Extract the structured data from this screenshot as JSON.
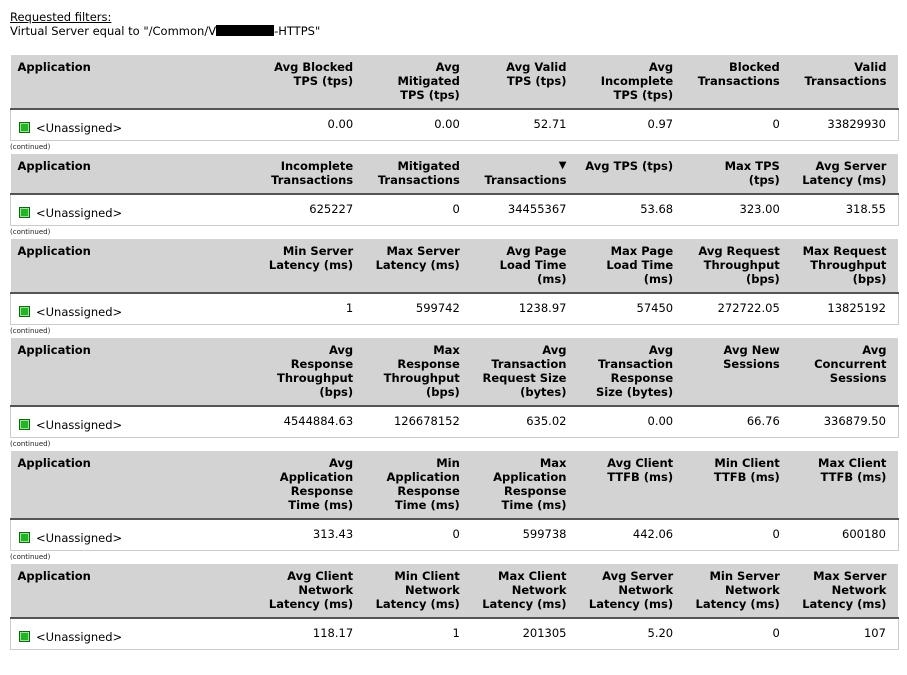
{
  "filters": {
    "title": "Requested filters:",
    "condition_prefix": "Virtual Server equal to \"/Common/V",
    "condition_suffix": "-HTTPS\""
  },
  "tables": [
    {
      "headers": [
        "Application",
        "Avg Blocked TPS (tps)",
        "Avg Mitigated TPS (tps)",
        "Avg Valid TPS (tps)",
        "Avg Incomplete TPS (tps)",
        "Blocked Transactions",
        "Valid Transactions"
      ],
      "row": [
        "<Unassigned>",
        "0.00",
        "0.00",
        "52.71",
        "0.97",
        "0",
        "33829930"
      ],
      "continued": "(continued)"
    },
    {
      "headers": [
        "Application",
        "Incomplete Transactions",
        "Mitigated Transactions",
        "Transactions",
        "Avg TPS (tps)",
        "Max TPS (tps)",
        "Avg Server Latency (ms)"
      ],
      "sort_column": 3,
      "row": [
        "<Unassigned>",
        "625227",
        "0",
        "34455367",
        "53.68",
        "323.00",
        "318.55"
      ],
      "continued": "(continued)"
    },
    {
      "headers": [
        "Application",
        "Min Server Latency (ms)",
        "Max Server Latency (ms)",
        "Avg Page Load Time (ms)",
        "Max Page Load Time (ms)",
        "Avg Request Throughput (bps)",
        "Max Request Throughput (bps)"
      ],
      "row": [
        "<Unassigned>",
        "1",
        "599742",
        "1238.97",
        "57450",
        "272722.05",
        "13825192"
      ],
      "continued": "(continued)"
    },
    {
      "headers": [
        "Application",
        "Avg Response Throughput (bps)",
        "Max Response Throughput (bps)",
        "Avg Transaction Request Size (bytes)",
        "Avg Transaction Response Size (bytes)",
        "Avg New Sessions",
        "Avg Concurrent Sessions"
      ],
      "row": [
        "<Unassigned>",
        "4544884.63",
        "126678152",
        "635.02",
        "0.00",
        "66.76",
        "336879.50"
      ],
      "continued": "(continued)"
    },
    {
      "headers": [
        "Application",
        "Avg Application Response Time (ms)",
        "Min Application Response Time (ms)",
        "Max Application Response Time (ms)",
        "Avg Client TTFB (ms)",
        "Min Client TTFB (ms)",
        "Max Client TTFB (ms)"
      ],
      "row": [
        "<Unassigned>",
        "313.43",
        "0",
        "599738",
        "442.06",
        "0",
        "600180"
      ],
      "continued": "(continued)"
    },
    {
      "headers": [
        "Application",
        "Avg Client Network Latency (ms)",
        "Min Client Network Latency (ms)",
        "Max Client Network Latency (ms)",
        "Avg Server Network Latency (ms)",
        "Min Server Network Latency (ms)",
        "Max Server Network Latency (ms)"
      ],
      "row": [
        "<Unassigned>",
        "118.17",
        "1",
        "201305",
        "5.20",
        "0",
        "107"
      ]
    }
  ]
}
